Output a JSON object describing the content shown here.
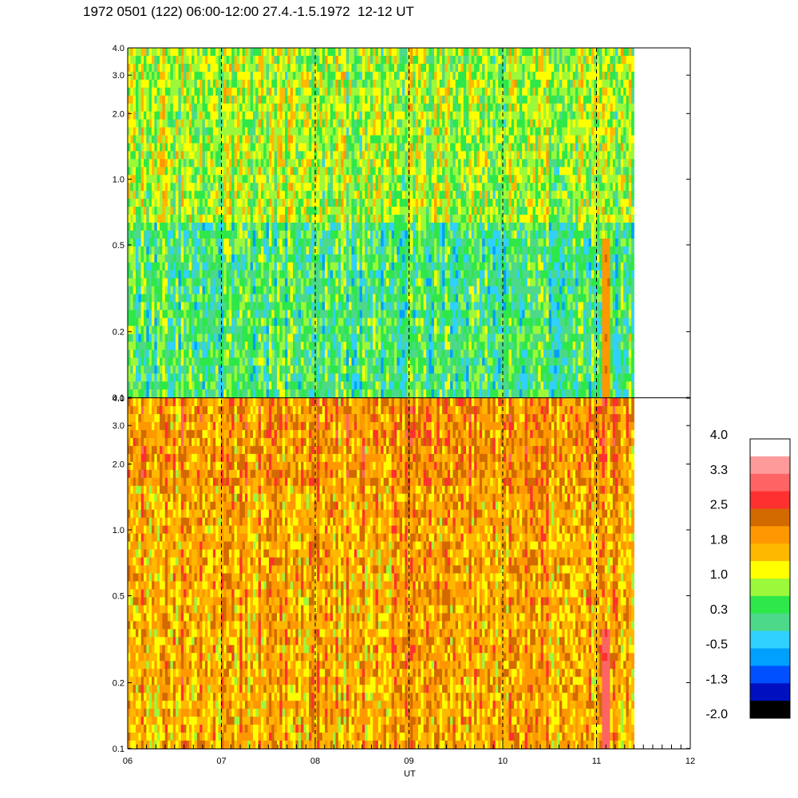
{
  "title": "1972 0501 (122) 06:00-12:00 27.4.-1.5.1972  12-12 UT",
  "chart_data": {
    "type": "heatmap",
    "title": "1972 0501 (122) 06:00-12:00 27.4.-1.5.1972  12-12 UT",
    "xlabel": "UT",
    "x_ticks": [
      "06",
      "07",
      "08",
      "09",
      "10",
      "11",
      "12"
    ],
    "xlim": [
      6,
      12
    ],
    "data_end_hour": 11.4,
    "y_scale": "log",
    "ylim": [
      0.1,
      4.0
    ],
    "y_ticks": [
      {
        "value": 0.1,
        "label": "0.1"
      },
      {
        "value": 0.2,
        "label": "0.2"
      },
      {
        "value": 0.5,
        "label": "0.5"
      },
      {
        "value": 1.0,
        "label": "1.0"
      },
      {
        "value": 2.0,
        "label": "2.0"
      },
      {
        "value": 3.0,
        "label": "3.0"
      },
      {
        "value": 4.0,
        "label": "4.0"
      }
    ],
    "dashed_lines_hours": [
      7,
      8,
      9,
      10,
      11
    ],
    "panels": [
      {
        "name": "upper",
        "typical_level": 0.5,
        "features": [
          {
            "from_hour": 11.05,
            "to_hour": 11.15,
            "level": 2.0,
            "y_max": 0.55
          }
        ]
      },
      {
        "name": "lower",
        "typical_level": 1.8,
        "features": [
          {
            "from_hour": 11.05,
            "to_hour": 11.15,
            "level": 3.0,
            "y_max": 0.35
          }
        ]
      }
    ],
    "colorbar": {
      "labels": [
        "4.0",
        "3.3",
        "2.5",
        "1.8",
        "1.0",
        "0.3",
        "-0.5",
        "-1.3",
        "-2.0"
      ],
      "range": [
        -2.0,
        4.0
      ],
      "colors": [
        "#ffffff",
        "#ff9a9a",
        "#ff6464",
        "#ff3030",
        "#d26a00",
        "#ff9800",
        "#ffb800",
        "#ffff00",
        "#9cf83a",
        "#2ee84a",
        "#4cd98a",
        "#30d0ff",
        "#00a0ff",
        "#0050ff",
        "#0010c0",
        "#000000"
      ]
    }
  }
}
